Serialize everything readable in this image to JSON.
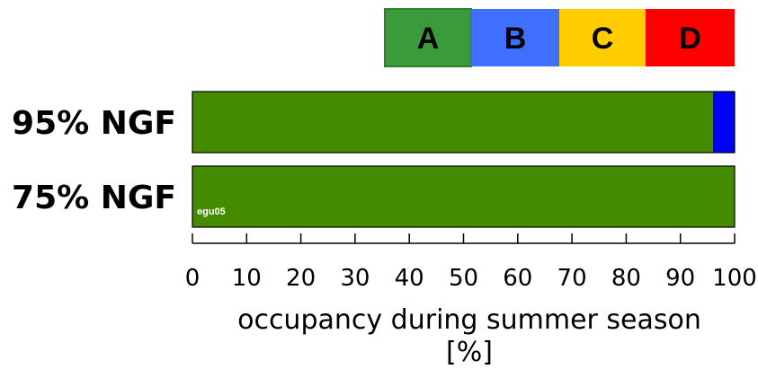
{
  "chart_data": {
    "type": "bar",
    "orientation": "horizontal",
    "stacked": true,
    "categories": [
      "95% NGF",
      "75% NGF"
    ],
    "series": [
      {
        "key": "A",
        "values": [
          96,
          100
        ]
      },
      {
        "key": "B",
        "values": [
          4,
          0
        ]
      },
      {
        "key": "C",
        "values": [
          0,
          0
        ]
      },
      {
        "key": "D",
        "values": [
          0,
          0
        ]
      }
    ],
    "series_colors": {
      "A": "#458B00",
      "B": "#0000FF",
      "C": "#FFCC00",
      "D": "#FF0000"
    },
    "legend": {
      "placement": "top-right",
      "items": [
        {
          "label": "A",
          "color": "#3A9B3A",
          "border": "#2F7F2F"
        },
        {
          "label": "B",
          "color": "#3F6FFF"
        },
        {
          "label": "C",
          "color": "#FFCC00"
        },
        {
          "label": "D",
          "color": "#FF0000"
        }
      ]
    },
    "x_ticks": [
      0,
      10,
      20,
      30,
      40,
      50,
      60,
      70,
      80,
      90,
      100
    ],
    "xlim": [
      0,
      100
    ],
    "xlabel_lines": [
      "occupancy during summer season",
      "[%]"
    ],
    "annotation": "egu05",
    "grid": false
  }
}
